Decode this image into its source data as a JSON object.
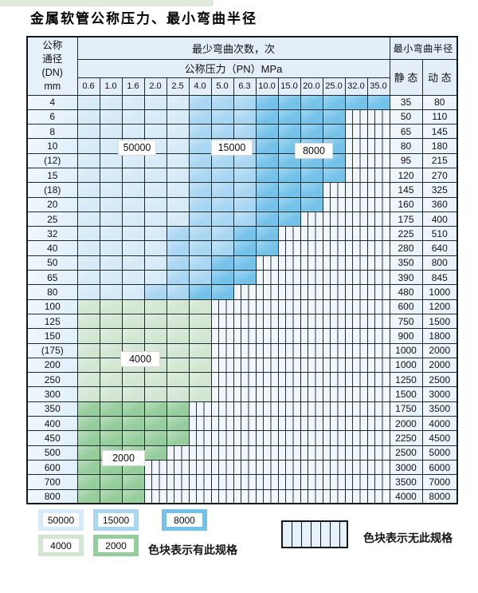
{
  "page": {
    "title": "金属软管公称压力、最小弯曲半径"
  },
  "colors": {
    "c50000": "#d6eaf8",
    "c15000": "#a9d6f2",
    "c8000": "#74c2ea",
    "c4000": "#d2e6d1",
    "c2000": "#96cd9c",
    "stripe_bg": "#f1f6fc",
    "grid": "#1c2b2b",
    "header_bg": "#e4eef8"
  },
  "table": {
    "header": {
      "dn_lines": [
        "公称",
        "通径",
        "(DN)",
        "mm"
      ],
      "bend_title": "最少弯曲次数，次",
      "pressure_title": "公称压力（PN）MPa",
      "pressures": [
        "0.6",
        "1.0",
        "1.6",
        "2.0",
        "2.5",
        "4.0",
        "5.0",
        "6.3",
        "10.0",
        "15.0",
        "20.0",
        "25.0",
        "32.0",
        "35.0"
      ],
      "radius_title": "最小弯曲半径",
      "static_label": "静 态",
      "dynamic_label": "动 态"
    },
    "region_labels": [
      {
        "text": "50000"
      },
      {
        "text": "15000"
      },
      {
        "text": "8000"
      },
      {
        "text": "4000"
      },
      {
        "text": "2000"
      }
    ],
    "rows": [
      {
        "dn": "4",
        "static_radius": "35",
        "dynamic_radius": "80",
        "zones": {
          "c50000": 5,
          "c15000": 3,
          "c8000": 6
        }
      },
      {
        "dn": "6",
        "static_radius": "50",
        "dynamic_radius": "110",
        "zones": {
          "c50000": 5,
          "c15000": 3,
          "c8000": 4
        }
      },
      {
        "dn": "8",
        "static_radius": "65",
        "dynamic_radius": "145",
        "zones": {
          "c50000": 5,
          "c15000": 3,
          "c8000": 4
        }
      },
      {
        "dn": "10",
        "static_radius": "80",
        "dynamic_radius": "180",
        "zones": {
          "c50000": 5,
          "c15000": 3,
          "c8000": 4
        }
      },
      {
        "dn": "(12)",
        "static_radius": "95",
        "dynamic_radius": "215",
        "zones": {
          "c50000": 5,
          "c15000": 3,
          "c8000": 4
        }
      },
      {
        "dn": "15",
        "static_radius": "120",
        "dynamic_radius": "270",
        "zones": {
          "c50000": 5,
          "c15000": 3,
          "c8000": 4
        }
      },
      {
        "dn": "(18)",
        "static_radius": "145",
        "dynamic_radius": "325",
        "zones": {
          "c50000": 5,
          "c15000": 3,
          "c8000": 3
        }
      },
      {
        "dn": "20",
        "static_radius": "160",
        "dynamic_radius": "360",
        "zones": {
          "c50000": 5,
          "c15000": 3,
          "c8000": 3
        }
      },
      {
        "dn": "25",
        "static_radius": "175",
        "dynamic_radius": "400",
        "zones": {
          "c50000": 5,
          "c15000": 3,
          "c8000": 2
        }
      },
      {
        "dn": "32",
        "static_radius": "225",
        "dynamic_radius": "510",
        "zones": {
          "c50000": 4,
          "c15000": 3,
          "c8000": 2
        }
      },
      {
        "dn": "40",
        "static_radius": "280",
        "dynamic_radius": "640",
        "zones": {
          "c50000": 4,
          "c15000": 3,
          "c8000": 2
        }
      },
      {
        "dn": "50",
        "static_radius": "350",
        "dynamic_radius": "800",
        "zones": {
          "c50000": 4,
          "c15000": 2,
          "c8000": 2
        }
      },
      {
        "dn": "65",
        "static_radius": "390",
        "dynamic_radius": "845",
        "zones": {
          "c50000": 4,
          "c15000": 2,
          "c8000": 2
        }
      },
      {
        "dn": "80",
        "static_radius": "480",
        "dynamic_radius": "1000",
        "zones": {
          "c50000": 3,
          "c15000": 2,
          "c8000": 2
        }
      },
      {
        "dn": "100",
        "static_radius": "600",
        "dynamic_radius": "1200",
        "zones": {
          "c4000": 6
        }
      },
      {
        "dn": "125",
        "static_radius": "750",
        "dynamic_radius": "1500",
        "zones": {
          "c4000": 6
        }
      },
      {
        "dn": "150",
        "static_radius": "900",
        "dynamic_radius": "1800",
        "zones": {
          "c4000": 6
        }
      },
      {
        "dn": "(175)",
        "static_radius": "1000",
        "dynamic_radius": "2000",
        "zones": {
          "c4000": 6
        }
      },
      {
        "dn": "200",
        "static_radius": "1000",
        "dynamic_radius": "2000",
        "zones": {
          "c4000": 6
        }
      },
      {
        "dn": "250",
        "static_radius": "1250",
        "dynamic_radius": "2500",
        "zones": {
          "c4000": 6
        }
      },
      {
        "dn": "300",
        "static_radius": "1500",
        "dynamic_radius": "3000",
        "zones": {
          "c4000": 6
        }
      },
      {
        "dn": "350",
        "static_radius": "1750",
        "dynamic_radius": "3500",
        "zones": {
          "c2000": 5
        }
      },
      {
        "dn": "400",
        "static_radius": "2000",
        "dynamic_radius": "4000",
        "zones": {
          "c2000": 5
        }
      },
      {
        "dn": "450",
        "static_radius": "2250",
        "dynamic_radius": "4500",
        "zones": {
          "c2000": 5
        }
      },
      {
        "dn": "500",
        "static_radius": "2500",
        "dynamic_radius": "5000",
        "zones": {
          "c2000": 4
        }
      },
      {
        "dn": "600",
        "static_radius": "3000",
        "dynamic_radius": "6000",
        "zones": {
          "c2000": 3
        }
      },
      {
        "dn": "700",
        "static_radius": "3500",
        "dynamic_radius": "7000",
        "zones": {
          "c2000": 3
        }
      },
      {
        "dn": "800",
        "static_radius": "4000",
        "dynamic_radius": "8000",
        "zones": {
          "c2000": 3
        }
      }
    ]
  },
  "legend": {
    "swatches": [
      {
        "label": "50000",
        "color_key": "c50000"
      },
      {
        "label": "15000",
        "color_key": "c15000"
      },
      {
        "label": "8000",
        "color_key": "c8000"
      },
      {
        "label": "4000",
        "color_key": "c4000"
      },
      {
        "label": "2000",
        "color_key": "c2000"
      }
    ],
    "has_spec_text": "色块表示有此规格",
    "no_spec_text": "色块表示无此规格"
  }
}
